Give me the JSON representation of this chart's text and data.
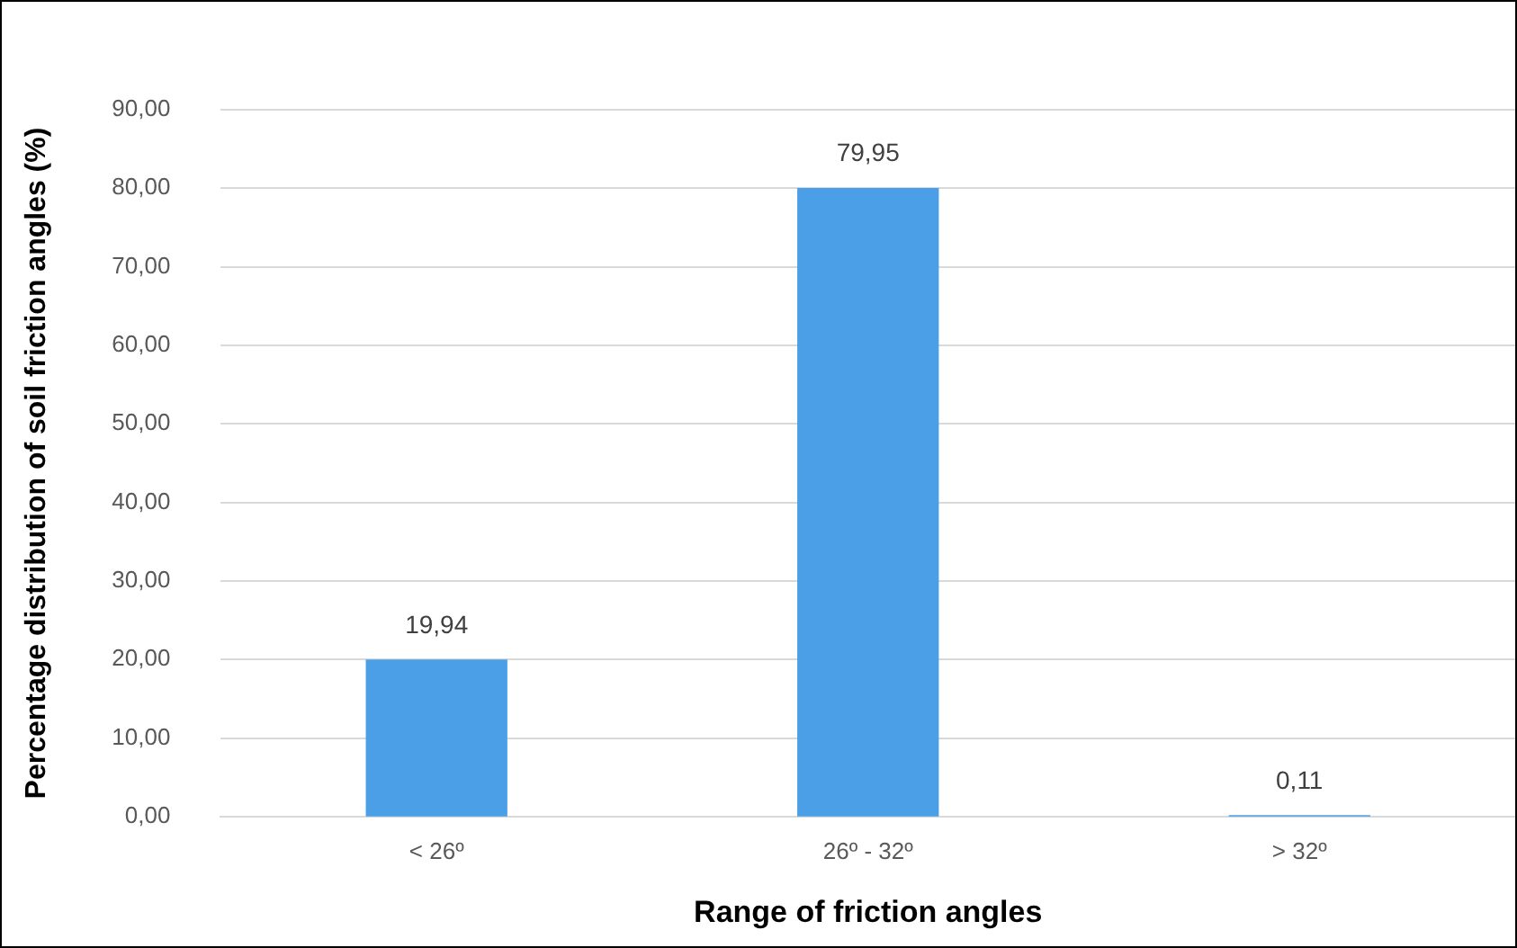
{
  "chart_data": {
    "type": "bar",
    "xlabel": "Range of friction angles",
    "ylabel": "Percentage distribution of soil friction angles (%)",
    "categories": [
      "< 26º",
      "26º - 32º",
      "> 32º"
    ],
    "values": [
      19.94,
      79.95,
      0.11
    ],
    "color": "#4a9fe6",
    "value_labels": [
      "19,94",
      "79,95",
      "0,11"
    ],
    "ylim": [
      0,
      90
    ],
    "yticks": [
      {
        "value": 0,
        "label": "0,00"
      },
      {
        "value": 10,
        "label": "10,00"
      },
      {
        "value": 20,
        "label": "20,00"
      },
      {
        "value": 30,
        "label": "30,00"
      },
      {
        "value": 40,
        "label": "40,00"
      },
      {
        "value": 50,
        "label": "50,00"
      },
      {
        "value": 60,
        "label": "60,00"
      },
      {
        "value": 70,
        "label": "70,00"
      },
      {
        "value": 80,
        "label": "80,00"
      },
      {
        "value": 90,
        "label": "90,00"
      }
    ],
    "grid": "y",
    "legend": false
  }
}
